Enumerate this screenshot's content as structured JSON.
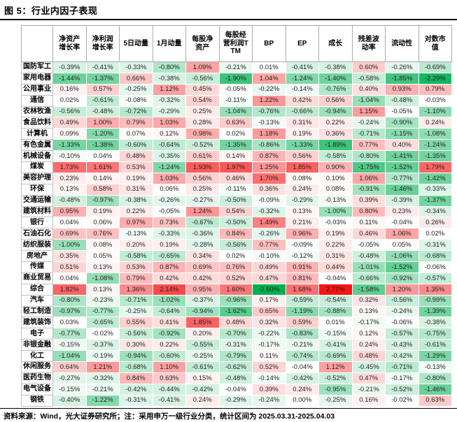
{
  "header": {
    "title": "图 5：行业内因子表现"
  },
  "footer": {
    "source_note": "资料来源：Wind，光大证券研究所；注：采用申万一级行业分类，统计区间为 2025.03.31-2025.04.03"
  },
  "chart_data": {
    "type": "heatmap",
    "title": "图 5：行业内因子表现",
    "value_unit": "%",
    "value_format": "0.00%",
    "columns": [
      "净资产增长率",
      "净利润增长率",
      "5日动量",
      "1月动量",
      "每股净资产",
      "每股经营利润TTM",
      "BP",
      "EP",
      "成长",
      "残差波动率",
      "流动性",
      "对数市值"
    ],
    "color_scale": {
      "zero_color": "#FFFFFF",
      "positive_color": "#F81414",
      "negative_color": "#00B050",
      "positive_max": 2.77,
      "negative_min": -2.5
    },
    "rows": [
      {
        "label": "国防军工",
        "values": [
          -0.39,
          -0.41,
          -0.33,
          -0.8,
          1.09,
          -0.21,
          0.01,
          -0.41,
          -0.38,
          0.6,
          -0.26,
          -0.69
        ]
      },
      {
        "label": "家用电器",
        "values": [
          -1.44,
          -1.37,
          0.66,
          -0.38,
          -0.56,
          -1.9,
          1.04,
          -1.24,
          -1.4,
          -0.58,
          -1.85,
          -2.29
        ]
      },
      {
        "label": "公用事业",
        "values": [
          0.16,
          0.57,
          -0.25,
          1.12,
          0.45,
          -0.05,
          -0.22,
          -0.14,
          -0.76,
          0.4,
          0.93,
          0.79
        ]
      },
      {
        "label": "通信",
        "values": [
          0.02,
          -0.61,
          -0.08,
          -0.32,
          0.54,
          -0.11,
          1.22,
          0.42,
          0.56,
          -1.04,
          -0.48,
          -0.03
        ]
      },
      {
        "label": "农林牧渔",
        "values": [
          -0.56,
          -0.48,
          -0.72,
          -0.29,
          0.25,
          -1.04,
          -0.76,
          -0.66,
          -0.94,
          1.15,
          -0.05,
          -1.1
        ]
      },
      {
        "label": "食品饮料",
        "values": [
          0.49,
          1.0,
          0.79,
          1.03,
          0.28,
          0.63,
          -0.13,
          0.31,
          0.22,
          -0.24,
          -0.9,
          0.24
        ]
      },
      {
        "label": "计算机",
        "values": [
          0.09,
          -1.2,
          0.07,
          0.12,
          0.98,
          0.02,
          1.18,
          0.19,
          0.36,
          -0.71,
          -1.15,
          -1.08
        ]
      },
      {
        "label": "有色金属",
        "values": [
          -1.33,
          -1.38,
          -0.6,
          -0.64,
          -0.52,
          -1.35,
          -0.86,
          -1.33,
          -1.89,
          0.77,
          0.4,
          -1.24
        ]
      },
      {
        "label": "机械设备",
        "values": [
          -0.1,
          0.04,
          0.48,
          -0.35,
          0.61,
          0.14,
          0.87,
          0.56,
          -0.58,
          -0.8,
          -1.41,
          -1.35
        ]
      },
      {
        "label": "煤炭",
        "values": [
          1.73,
          1.61,
          0.53,
          -1.24,
          1.93,
          1.97,
          1.25,
          1.85,
          0.9,
          -1.75,
          -1.52,
          1.79
        ]
      },
      {
        "label": "美容护理",
        "values": [
          0.23,
          0.14,
          0.19,
          1.03,
          0.56,
          0.46,
          1.7,
          0.08,
          0.1,
          1.06,
          -0.77,
          -1.42
        ]
      },
      {
        "label": "环保",
        "values": [
          0.13,
          0.58,
          0.31,
          0.06,
          0.25,
          -0.11,
          0.36,
          0.24,
          0.08,
          -0.91,
          -1.46,
          -0.33
        ]
      },
      {
        "label": "交通运输",
        "values": [
          -0.48,
          -0.97,
          -0.38,
          -0.26,
          -0.27,
          -0.5,
          -0.09,
          -0.29,
          -0.13,
          0.39,
          -0.39,
          -1.37
        ]
      },
      {
        "label": "建筑材料",
        "values": [
          0.95,
          0.19,
          0.22,
          -0.05,
          1.24,
          0.54,
          -0.32,
          0.13,
          -1.0,
          0.8,
          0.23,
          -0.34
        ]
      },
      {
        "label": "银行",
        "values": [
          0.04,
          0.06,
          0.97,
          0.73,
          -0.67,
          -0.5,
          1.49,
          0.21,
          -0.03,
          0.11,
          -0.04,
          0.26
        ]
      },
      {
        "label": "石油石化",
        "values": [
          0.69,
          0.76,
          -0.13,
          -0.33,
          -0.36,
          0.84,
          -0.26,
          0.96,
          0.19,
          0.46,
          1.06,
          0.02
        ]
      },
      {
        "label": "纺织服装",
        "values": [
          -1.0,
          0.08,
          0.2,
          0.19,
          -0.28,
          -0.56,
          0.77,
          -0.09,
          0.22,
          -0.05,
          0.05,
          -0.31
        ]
      },
      {
        "label": "房地产",
        "values": [
          0.35,
          0.05,
          -0.58,
          -0.65,
          0.34,
          0.02,
          -0.1,
          -0.12,
          0.31,
          -0.48,
          -1.06,
          -0.68
        ]
      },
      {
        "label": "传媒",
        "values": [
          0.51,
          0.13,
          0.53,
          0.87,
          0.69,
          0.76,
          0.49,
          0.91,
          0.44,
          -1.01,
          -1.52,
          -0.06
        ]
      },
      {
        "label": "商业贸易",
        "values": [
          0.04,
          -1.08,
          0.79,
          0.42,
          0.42,
          0.52,
          0.47,
          0.81,
          -0.04,
          -0.66,
          -0.92,
          -0.57
        ]
      },
      {
        "label": "综合",
        "values": [
          1.82,
          0.13,
          1.36,
          2.14,
          0.95,
          1.6,
          -2.5,
          1.68,
          2.77,
          -1.58,
          1.2,
          1.35
        ]
      },
      {
        "label": "汽车",
        "values": [
          -0.8,
          -0.23,
          -0.71,
          -1.02,
          -0.37,
          -0.96,
          0.17,
          -0.59,
          -0.54,
          0.32,
          -0.56,
          -0.99
        ]
      },
      {
        "label": "轻工制造",
        "values": [
          -0.97,
          -0.77,
          -0.25,
          -0.64,
          -0.94,
          -1.62,
          0.65,
          -1.19,
          -0.88,
          0.13,
          -0.24,
          -1.39
        ]
      },
      {
        "label": "建筑装饰",
        "values": [
          0.03,
          -0.65,
          0.55,
          0.41,
          1.85,
          0.48,
          0.32,
          0.59,
          0.01,
          -0.17,
          -0.06,
          -0.38
        ]
      },
      {
        "label": "电子",
        "values": [
          -0.77,
          -0.02,
          -0.56,
          -0.92,
          0.2,
          -0.7,
          -0.22,
          -0.83,
          -0.15,
          0.12,
          -0.57,
          -0.75
        ]
      },
      {
        "label": "非银金融",
        "values": [
          -0.15,
          -0.37,
          0.3,
          0.22,
          -0.55,
          -0.31,
          -0.17,
          -0.21,
          -0.41,
          0.24,
          -0.43,
          -0.61
        ]
      },
      {
        "label": "化工",
        "values": [
          -1.04,
          -0.19,
          -0.94,
          -0.6,
          -0.25,
          -0.79,
          0.11,
          -0.74,
          -0.69,
          0.48,
          -0.42,
          -1.29
        ]
      },
      {
        "label": "休闲服务",
        "values": [
          0.64,
          1.21,
          -0.68,
          1.1,
          -0.61,
          -0.62,
          0.52,
          -0.04,
          1.12,
          -0.45,
          -0.71,
          -0.13
        ]
      },
      {
        "label": "医药生物",
        "values": [
          -0.27,
          -0.32,
          0.84,
          0.63,
          0.15,
          -0.48,
          -0.14,
          -0.42,
          -0.52,
          0.47,
          -0.17,
          -0.8
        ]
      },
      {
        "label": "电气设备",
        "values": [
          -0.15,
          -0.21,
          -0.42,
          -0.44,
          -0.42,
          -0.04,
          0.39,
          0.24,
          -0.95,
          -0.21,
          -0.52,
          -1.46
        ]
      },
      {
        "label": "钢铁",
        "values": [
          -0.4,
          -1.22,
          -0.31,
          -0.41,
          0.24,
          -0.29,
          -0.24,
          0.0,
          -0.25,
          0.16,
          -0.02,
          0.63
        ]
      }
    ]
  }
}
